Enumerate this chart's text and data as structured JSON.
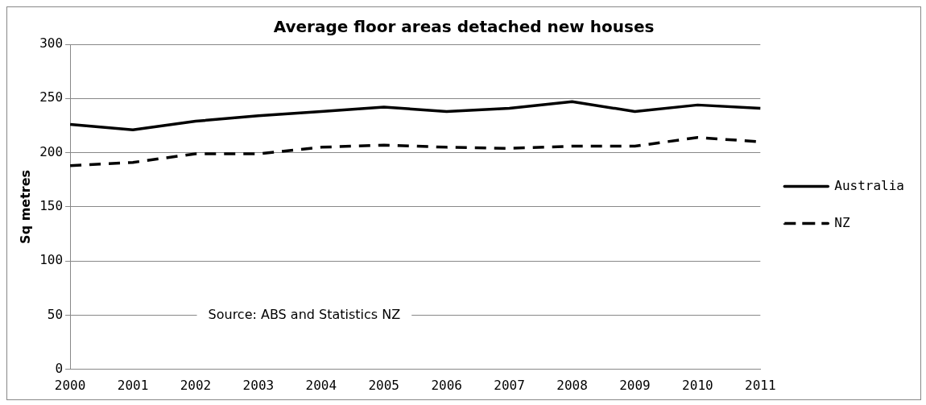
{
  "chart_data": {
    "type": "line",
    "title": "Average floor areas detached new houses",
    "ylabel": "Sq metres",
    "categories": [
      "2000",
      "2001",
      "2002",
      "2003",
      "2004",
      "2005",
      "2006",
      "2007",
      "2008",
      "2009",
      "2010",
      "2011"
    ],
    "series": [
      {
        "name": "Australia",
        "color": "#000000",
        "line_style": "solid",
        "values": [
          226,
          221,
          229,
          234,
          238,
          242,
          238,
          241,
          247,
          238,
          244,
          241
        ]
      },
      {
        "name": "NZ",
        "color": "#000000",
        "line_style": "dashed",
        "values": [
          188,
          191,
          199,
          199,
          205,
          207,
          205,
          204,
          206,
          206,
          214,
          210
        ]
      }
    ],
    "ylim": [
      0,
      300
    ],
    "yticks": [
      0,
      50,
      100,
      150,
      200,
      250,
      300
    ],
    "grid": "y",
    "legend": "right",
    "marker": "none",
    "annotations": [
      "Source: ABS and Statistics NZ"
    ]
  }
}
